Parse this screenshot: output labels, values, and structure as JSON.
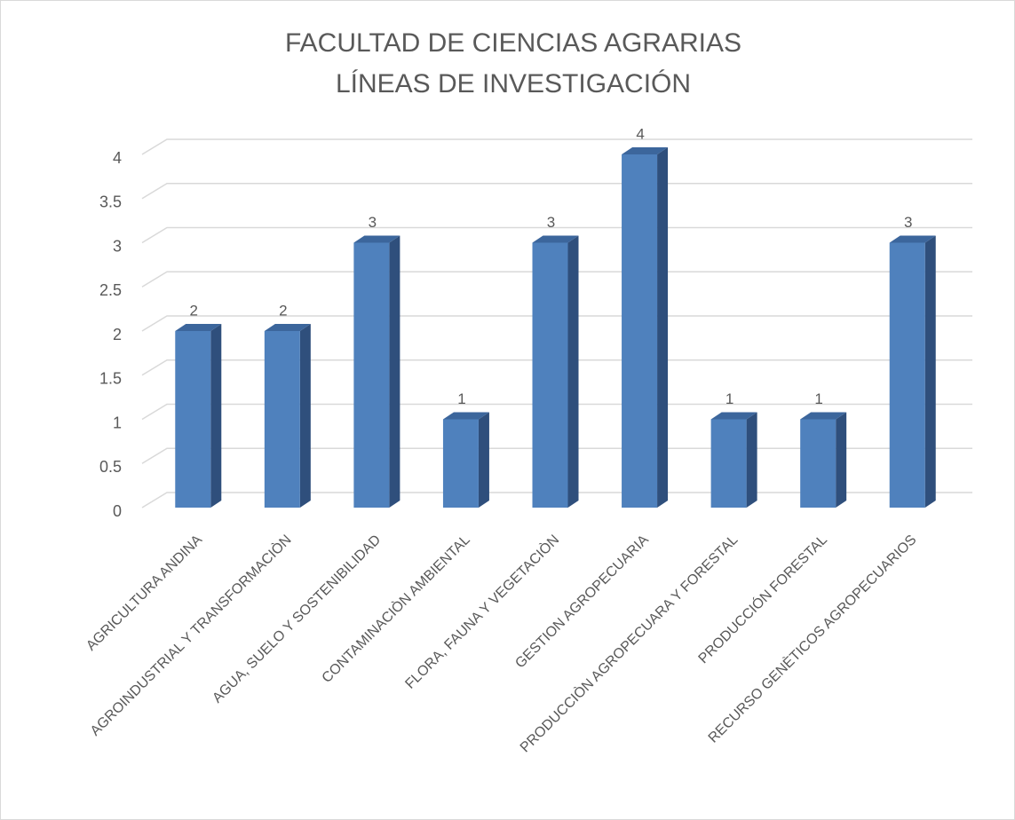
{
  "chart_data": {
    "type": "bar3d",
    "title": "FACULTAD DE CIENCIAS AGRARIAS",
    "subtitle": "LÍNEAS DE INVESTIGACIÓN",
    "categories": [
      "AGRICULTURA ANDINA",
      "AGROINDUSTRIAL Y TRANSFORMACIÒN",
      "AGUA, SUELO Y SOSTENIBILIDAD",
      "CONTAMINACIÒN AMBIENTAL",
      "FLORA, FAUNA Y VEGETACIÒN",
      "GESTION AGROPECUARIA",
      "PRODUCCIÒN AGROPECUARA Y FORESTAL",
      "PRODUCCIÓN FORESTAL",
      "RECURSO GENÈTICOS AGROPECUARIOS"
    ],
    "values": [
      2,
      2,
      3,
      1,
      3,
      4,
      1,
      1,
      3
    ],
    "color": "#4f81bd",
    "ylim": [
      0,
      4
    ],
    "yticks": [
      0,
      0.5,
      1,
      1.5,
      2,
      2.5,
      3,
      3.5,
      4
    ],
    "grid": true
  }
}
